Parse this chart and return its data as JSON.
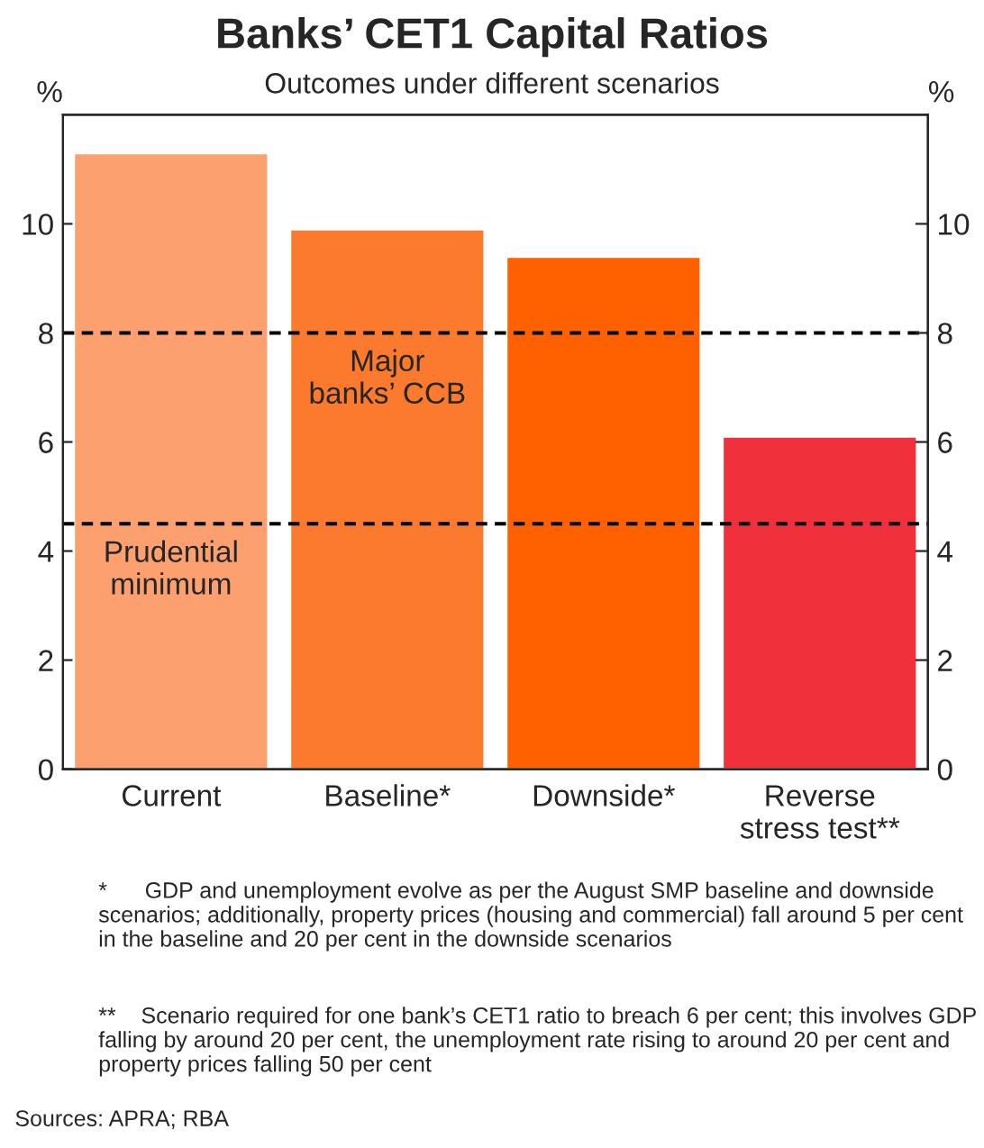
{
  "chart_data": {
    "type": "bar",
    "title": "Banks’ CET1 Capital Ratios",
    "subtitle": "Outcomes under different scenarios",
    "categories": [
      "Current",
      "Baseline*",
      "Downside*",
      "Reverse\nstress test**"
    ],
    "values": [
      11.3,
      9.9,
      9.4,
      6.1
    ],
    "colors": [
      "#fca070",
      "#fb7a2e",
      "#ff6000",
      "#f0303a"
    ],
    "ylabel": "%",
    "y2label": "%",
    "ylim": [
      0,
      12
    ],
    "yticks": [
      0,
      2,
      4,
      6,
      8,
      10
    ],
    "y2lim": [
      0,
      12
    ],
    "y2ticks": [
      0,
      2,
      4,
      6,
      8,
      10
    ],
    "ref_lines": [
      {
        "axis": "y",
        "value": 8,
        "label": "Major\nbanks’ CCB",
        "line_style": "dashed",
        "color": "#000000"
      },
      {
        "axis": "y",
        "value": 4.5,
        "label": "Prudential\nminimum",
        "line_style": "dashed",
        "color": "#000000"
      }
    ],
    "annotations": [
      "*      GDP and unemployment evolve as per the August SMP baseline and downside scenarios; additionally, property prices (housing and commercial) fall around 5 per cent in the baseline and 20 per cent in the downside scenarios",
      "**    Scenario required for one bank’s CET1 ratio to breach 6 per cent; this involves GDP falling by around 20 per cent, the unemployment rate rising to around 20 per cent and property prices falling 50 per cent",
      "Sources: APRA; RBA"
    ],
    "grid": false,
    "legend": false
  }
}
